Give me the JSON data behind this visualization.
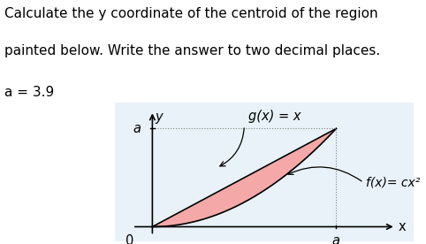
{
  "title_line1": "Calculate the y coordinate of the centroid of the region",
  "title_line2": "painted below. Write the answer to two decimal places.",
  "param_label": "a = 3.9",
  "a": 3.9,
  "bg_color": "#e8f2f8",
  "top_bg": "#ffffff",
  "region_fill": "#f4a9a8",
  "region_edge": "#c0504d",
  "axis_color": "#000000",
  "grid_line_color": "#aaaaaa",
  "label_g": "g(x) = x",
  "label_f": "f(x)= cx²",
  "label_a_yaxis": "a",
  "label_0": "0",
  "label_a_xaxis": "a",
  "label_x": "x",
  "label_y": "y",
  "title_fontsize": 11,
  "param_fontsize": 11,
  "annot_fontsize": 10.5
}
